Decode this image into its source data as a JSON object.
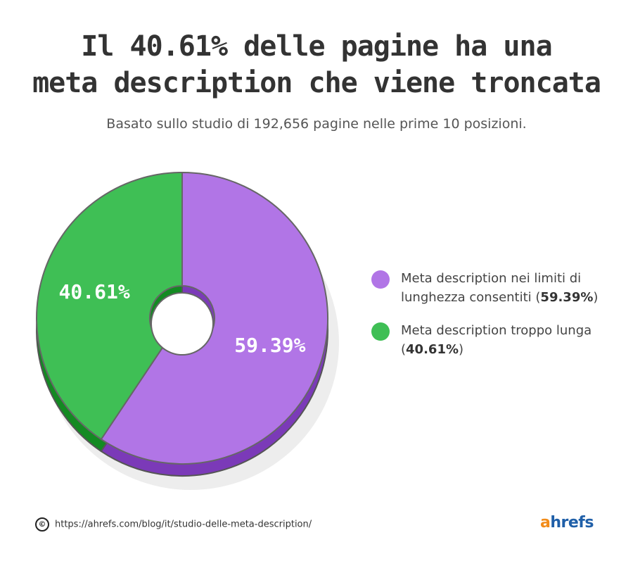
{
  "title_line1": "Il 40.61% delle pagine ha una",
  "title_line2": "meta description che viene troncata",
  "subtitle": "Basato sullo studio di 192,656 pagine nelle prime 10 posizioni.",
  "chart_data": {
    "type": "pie",
    "style": "3d-donut",
    "slices": [
      {
        "label": "Meta description nei limiti di lunghezza consentiti",
        "value": 59.39,
        "display": "59.39%",
        "color": "#b175e6",
        "side_color": "#7b3ab8"
      },
      {
        "label": "Meta description troppo lunga",
        "value": 40.61,
        "display": "40.61%",
        "color": "#3fbf55",
        "side_color": "#138a22"
      }
    ],
    "legend_position": "right"
  },
  "legend": [
    {
      "text": "Meta description nei limiti di lunghezza consentiti (",
      "pct": "59.39%",
      "close": ")",
      "color": "#b175e6"
    },
    {
      "text": "Meta description troppo lunga (",
      "pct": "40.61%",
      "close": ")",
      "color": "#3fbf55"
    }
  ],
  "footer": {
    "copyright_symbol": "©",
    "url": "https://ahrefs.com/blog/it/studio-delle-meta-description/"
  },
  "logo": {
    "a": "a",
    "rest": "hrefs"
  }
}
